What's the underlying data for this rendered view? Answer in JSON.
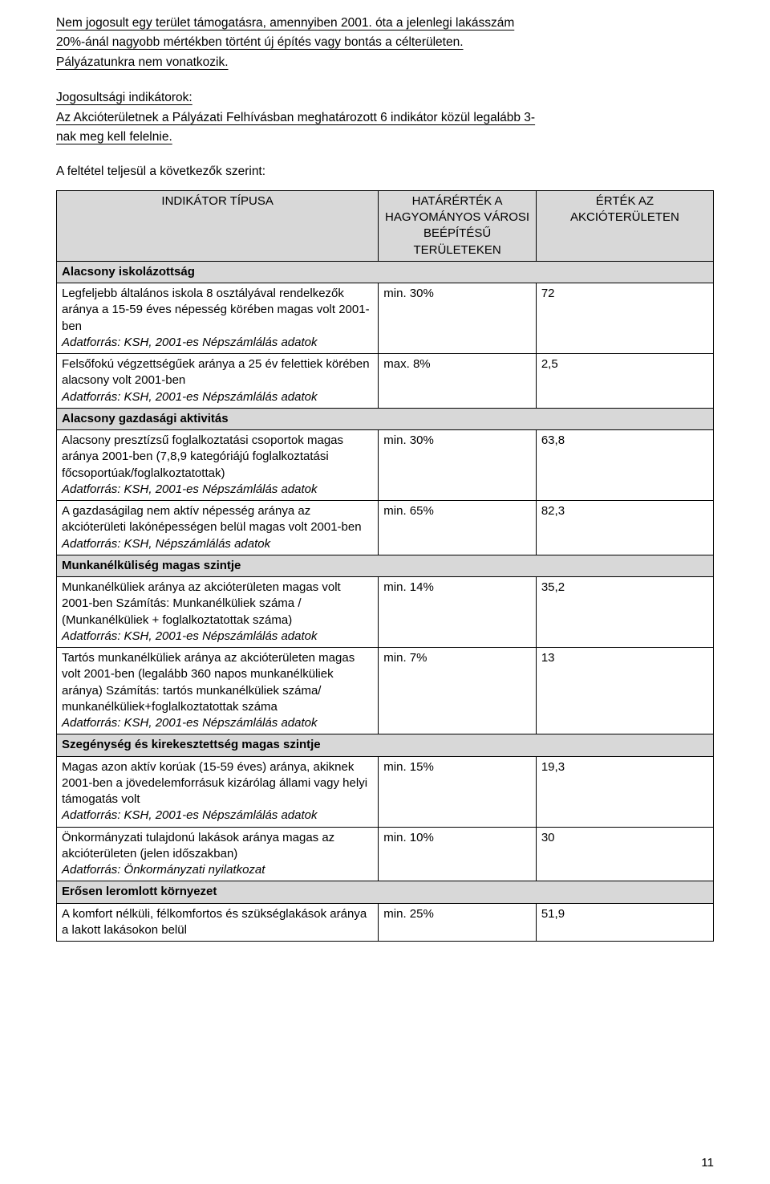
{
  "intro": {
    "block1": [
      "Nem jogosult egy terület támogatásra, amennyiben 2001. óta a jelenlegi lakásszám",
      "20%-ánál nagyobb mértékben történt új építés vagy bontás a célterületen.",
      "Pályázatunkra nem vonatkozik."
    ],
    "block2": [
      "Jogosultsági indikátorok:",
      "Az Akcióterületnek a Pályázati Felhívásban meghatározott 6 indikátor közül legalább 3-",
      "nak meg kell felelnie."
    ]
  },
  "condition_line": "A feltétel teljesül a következők szerint:",
  "table": {
    "background_header": "#d8d8d8",
    "header": {
      "c1": "INDIKÁTOR TÍPUSA",
      "c2": "HATÁRÉRTÉK A HAGYOMÁNYOS VÁROSI BEÉPÍTÉSŰ TERÜLETEKEN",
      "c3": "ÉRTÉK AZ AKCIÓTERÜLETEN"
    },
    "columns_width": [
      "49%",
      "24%",
      "27%"
    ],
    "sections": [
      {
        "title": "Alacsony iskolázottság",
        "rows": [
          {
            "desc_lines": [
              "Legfeljebb általános iskola 8 osztályával rendelkezők aránya a 15-59 éves népesség körében magas volt 2001-ben"
            ],
            "source": "Adatforrás: KSH, 2001-es Népszámlálás adatok",
            "threshold": "min. 30%",
            "value": "72"
          },
          {
            "desc_lines": [
              "Felsőfokú végzettségűek aránya a 25 év felettiek körében alacsony volt 2001-ben"
            ],
            "source": "Adatforrás: KSH, 2001-es Népszámlálás adatok",
            "threshold": "max. 8%",
            "value": "2,5"
          }
        ]
      },
      {
        "title": "Alacsony gazdasági aktivitás",
        "rows": [
          {
            "desc_lines": [
              "Alacsony presztízsű foglalkoztatási csoportok magas aránya 2001-ben (7,8,9 kategóriájú foglalkoztatási főcsoportúak/foglalkoztatottak)"
            ],
            "source": "Adatforrás: KSH, 2001-es Népszámlálás adatok",
            "threshold": "min. 30%",
            "value": "63,8"
          },
          {
            "desc_lines": [
              "A gazdaságilag nem aktív népesség aránya az akcióterületi lakónépességen belül magas volt 2001-ben"
            ],
            "source": "Adatforrás: KSH, Népszámlálás adatok",
            "threshold": "min. 65%",
            "value": "82,3"
          }
        ]
      },
      {
        "title": "Munkanélküliség magas szintje",
        "rows": [
          {
            "desc_lines": [
              "Munkanélküliek aránya az akcióterületen magas volt 2001-ben Számítás: Munkanélküliek száma / (Munkanélküliek + foglalkoztatottak száma)"
            ],
            "source": "Adatforrás: KSH, 2001-es Népszámlálás adatok",
            "threshold": "min. 14%",
            "value": "35,2"
          },
          {
            "desc_lines": [
              "Tartós munkanélküliek aránya az akcióterületen magas volt 2001-ben (legalább 360 napos munkanélküliek aránya) Számítás: tartós munkanélküliek száma/ munkanélküliek+foglalkoztatottak száma"
            ],
            "source": "Adatforrás: KSH, 2001-es Népszámlálás adatok",
            "threshold": "min. 7%",
            "value": "13"
          }
        ]
      },
      {
        "title": "Szegénység és kirekesztettség magas szintje",
        "rows": [
          {
            "desc_lines": [
              "Magas azon aktív korúak (15-59 éves) aránya, akiknek 2001-ben a jövedelemforrásuk kizárólag állami vagy helyi támogatás volt"
            ],
            "source": "Adatforrás: KSH, 2001-es Népszámlálás adatok",
            "threshold": "min. 15%",
            "value": "19,3"
          },
          {
            "desc_lines": [
              "Önkormányzati tulajdonú lakások aránya magas az akcióterületen (jelen időszakban)"
            ],
            "source": "Adatforrás: Önkormányzati nyilatkozat",
            "threshold": "min. 10%",
            "value": "30"
          }
        ]
      },
      {
        "title": "Erősen leromlott környezet",
        "rows": [
          {
            "desc_lines": [
              "A komfort nélküli, félkomfortos és szükséglakások aránya a lakott lakásokon belül"
            ],
            "source": "",
            "threshold": "min. 25%",
            "value": "51,9"
          }
        ]
      }
    ]
  },
  "page_number": "11"
}
